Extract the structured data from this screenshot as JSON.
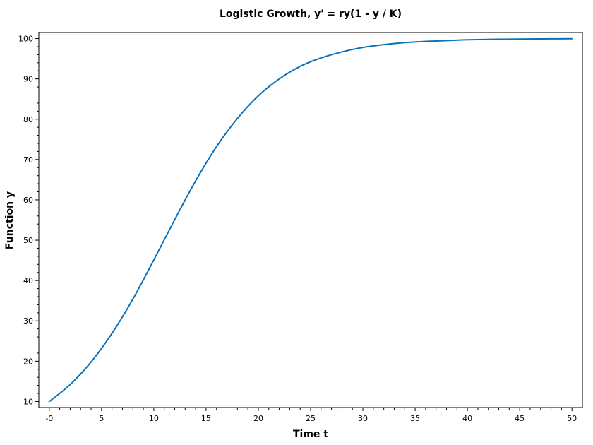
{
  "chart_data": {
    "type": "line",
    "title": "Logistic Growth, y' = ry(1 - y / K)",
    "xlabel": "Time t",
    "ylabel": "Function y",
    "xlim": [
      -1,
      51
    ],
    "ylim": [
      8.5,
      101.5
    ],
    "x_ticks": [
      0,
      5,
      10,
      15,
      20,
      25,
      30,
      35,
      40,
      45,
      50
    ],
    "x_tick_labels": [
      "-0",
      "5",
      "10",
      "15",
      "20",
      "25",
      "30",
      "35",
      "40",
      "45",
      "50"
    ],
    "y_ticks": [
      10,
      20,
      30,
      40,
      50,
      60,
      70,
      80,
      90,
      100
    ],
    "y_tick_labels": [
      "10",
      "20",
      "30",
      "40",
      "50",
      "60",
      "70",
      "80",
      "90",
      "100"
    ],
    "grid": false,
    "series": [
      {
        "color": "#0a72b8",
        "x": [
          0,
          2,
          4,
          6,
          8,
          10,
          12,
          14,
          16,
          18,
          20,
          22,
          24,
          26,
          28,
          30,
          32,
          34,
          36,
          38,
          40,
          42,
          44,
          46,
          48,
          50
        ],
        "y": [
          10.0,
          14.2,
          19.8,
          26.9,
          35.4,
          45.1,
          55.1,
          64.7,
          73.2,
          80.2,
          85.8,
          90.0,
          93.1,
          95.2,
          96.7,
          97.8,
          98.5,
          99.0,
          99.3,
          99.5,
          99.7,
          99.8,
          99.86,
          99.9,
          99.94,
          99.96
        ]
      }
    ]
  }
}
